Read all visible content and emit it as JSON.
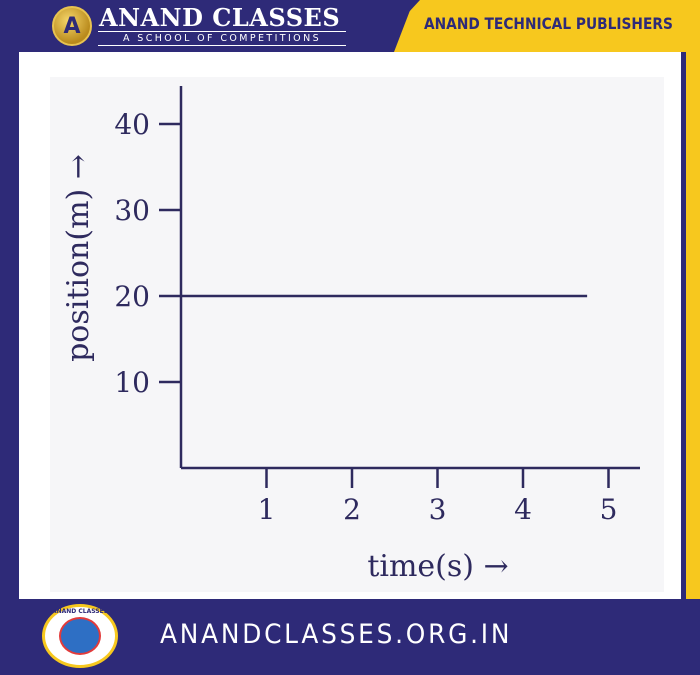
{
  "header": {
    "brand_title": "ANAND CLASSES",
    "brand_subtitle": "A SCHOOL OF COMPETITIONS",
    "publisher": "ANAND TECHNICAL PUBLISHERS",
    "logo_letter": "A"
  },
  "footer": {
    "website": "ANANDCLASSES.ORG.IN",
    "seal_text": "ANAND CLASSES"
  },
  "colors": {
    "frame": "#2e2a78",
    "accent": "#f7c81e",
    "ink": "#2e2a5e"
  },
  "chart_data": {
    "type": "line",
    "title": "",
    "xlabel": "time(s) →",
    "ylabel": "position(m) →",
    "x_ticks": [
      1,
      2,
      3,
      4,
      5
    ],
    "y_ticks": [
      10,
      20,
      30,
      40
    ],
    "xlim": [
      0,
      5
    ],
    "ylim": [
      0,
      40
    ],
    "grid": false,
    "series": [
      {
        "x": [
          0,
          4.75
        ],
        "y": [
          20,
          20
        ]
      }
    ]
  }
}
